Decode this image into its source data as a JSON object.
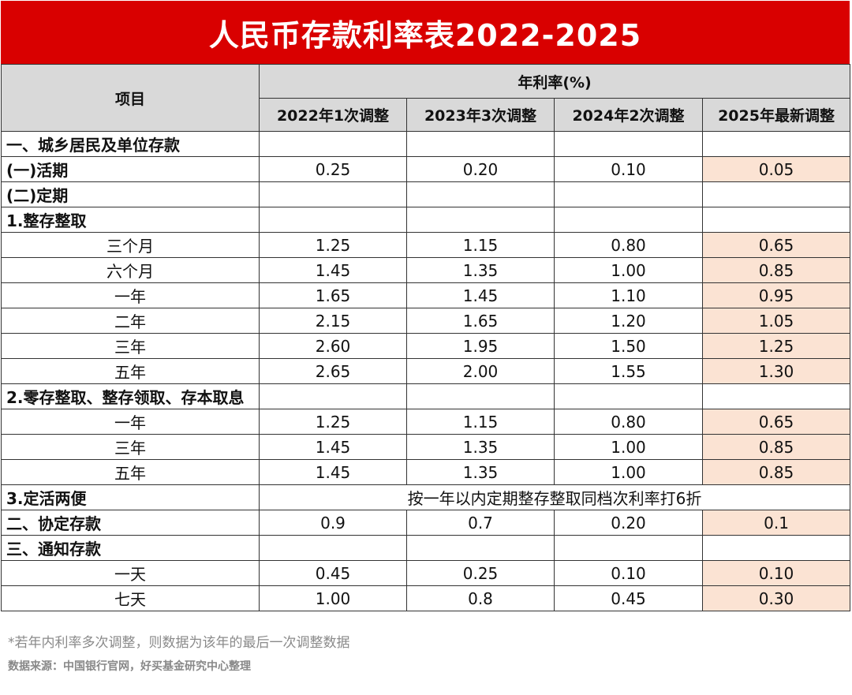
{
  "title": "人民币存款利率表2022-2025",
  "header": {
    "item_label": "项目",
    "group_label": "年利率(%)",
    "columns": [
      "2022年1次调整",
      "2023年3次调整",
      "2024年2次调整",
      "2025年最新调整"
    ]
  },
  "rows": [
    {
      "label": "一、城乡居民及单位存款",
      "kind": "section",
      "values": [
        "",
        "",
        "",
        ""
      ]
    },
    {
      "label": "(一)活期",
      "kind": "section",
      "values": [
        "0.25",
        "0.20",
        "0.10",
        "0.05"
      ]
    },
    {
      "label": "(二)定期",
      "kind": "section",
      "values": [
        "",
        "",
        "",
        ""
      ]
    },
    {
      "label": "1.整存整取",
      "kind": "section",
      "values": [
        "",
        "",
        "",
        ""
      ]
    },
    {
      "label": "三个月",
      "kind": "item",
      "values": [
        "1.25",
        "1.15",
        "0.80",
        "0.65"
      ]
    },
    {
      "label": "六个月",
      "kind": "item",
      "values": [
        "1.45",
        "1.35",
        "1.00",
        "0.85"
      ]
    },
    {
      "label": "一年",
      "kind": "item",
      "values": [
        "1.65",
        "1.45",
        "1.10",
        "0.95"
      ]
    },
    {
      "label": "二年",
      "kind": "item",
      "values": [
        "2.15",
        "1.65",
        "1.20",
        "1.05"
      ]
    },
    {
      "label": "三年",
      "kind": "item",
      "values": [
        "2.60",
        "1.95",
        "1.50",
        "1.25"
      ]
    },
    {
      "label": "五年",
      "kind": "item",
      "values": [
        "2.65",
        "2.00",
        "1.55",
        "1.30"
      ]
    },
    {
      "label": "2.零存整取、整存领取、存本取息",
      "kind": "section",
      "values": [
        "",
        "",
        "",
        ""
      ]
    },
    {
      "label": "一年",
      "kind": "item",
      "values": [
        "1.25",
        "1.15",
        "0.80",
        "0.65"
      ]
    },
    {
      "label": "三年",
      "kind": "item",
      "values": [
        "1.45",
        "1.35",
        "1.00",
        "0.85"
      ]
    },
    {
      "label": "五年",
      "kind": "item",
      "values": [
        "1.45",
        "1.35",
        "1.00",
        "0.85"
      ]
    },
    {
      "label": "3.定活两便",
      "kind": "merged",
      "merged_text": "按一年以内定期整存整取同档次利率打6折"
    },
    {
      "label": "二、协定存款",
      "kind": "section",
      "values": [
        "0.9",
        "0.7",
        "0.20",
        "0.1"
      ]
    },
    {
      "label": "三、通知存款",
      "kind": "section",
      "values": [
        "",
        "",
        "",
        ""
      ]
    },
    {
      "label": "一天",
      "kind": "item",
      "values": [
        "0.45",
        "0.25",
        "0.10",
        "0.10"
      ]
    },
    {
      "label": "七天",
      "kind": "item",
      "values": [
        "1.00",
        "0.8",
        "0.45",
        "0.30"
      ]
    }
  ],
  "footnote": "*若年内利率多次调整，则数据为该年的最后一次调整数据",
  "source": "数据来源：中国银行官网，好买基金研究中心整理",
  "colors": {
    "title_bg": "#d90000",
    "header_bg": "#d9d9d9",
    "highlight_bg": "#fbe3d3"
  }
}
